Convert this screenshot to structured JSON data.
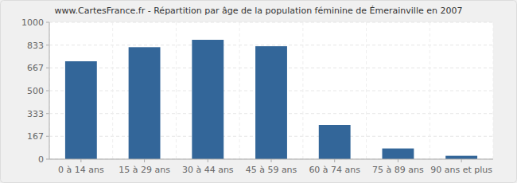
{
  "chart_data": {
    "type": "bar",
    "title": "www.CartesFrance.fr - Répartition par âge de la population féminine de Émerainville en 2007",
    "categories": [
      "0 à 14 ans",
      "15 à 29 ans",
      "30 à 44 ans",
      "45 à 59 ans",
      "60 à 74 ans",
      "75 à 89 ans",
      "90 ans et plus"
    ],
    "values": [
      715,
      818,
      872,
      825,
      250,
      78,
      25
    ],
    "color": "#336699",
    "ylim": [
      0,
      1000
    ],
    "yticks": [
      0,
      167,
      333,
      500,
      667,
      833,
      1000
    ],
    "grid": true
  }
}
